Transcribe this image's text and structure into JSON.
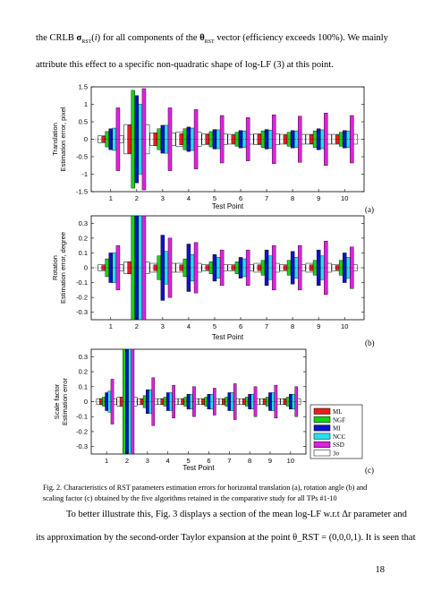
{
  "paragraph_top": {
    "line1": [
      "the CRLB σ_RST(i) for all components of the θ_RST vector (efficiency exceeds 100%). We mainly"
    ],
    "line2": "attribute this effect to a specific non-quadratic shape of log-LF (3) at this point."
  },
  "figure": {
    "panels": [
      {
        "tag": "(a)",
        "ylabel_lines": [
          "Translation",
          "Estimation error, pixel"
        ],
        "xlabel": "Test Point"
      },
      {
        "tag": "(b)",
        "ylabel_lines": [
          "Rotation",
          "Estimation error, degree"
        ],
        "xlabel": "Test Point"
      },
      {
        "tag": "(c)",
        "ylabel_lines": [
          "Scale factor",
          "Estimation error"
        ],
        "xlabel": "Test Point"
      }
    ],
    "legend": [
      "ML",
      "NGF",
      "MI",
      "NCC",
      "SSD",
      "3σ"
    ],
    "colors": {
      "ML": "#ee1c1c",
      "NGF": "#16d316",
      "MI": "#1010cc",
      "NCC": "#22e0f0",
      "SSD": "#e020e0",
      "3σ": "#ffffff"
    }
  },
  "chart_data": [
    {
      "type": "bar",
      "title": "",
      "xlabel": "Test Point",
      "ylabel": "Translation Estimation error, pixel",
      "categories": [
        "1",
        "2",
        "3",
        "4",
        "5",
        "6",
        "7",
        "8",
        "9",
        "10"
      ],
      "yticks": [
        "1.5",
        "1",
        "0.5",
        "0",
        "-0.5",
        "-1",
        "-1.5"
      ],
      "ylim": [
        -1.5,
        1.5
      ],
      "sigma3": [
        0.1,
        0.42,
        0.18,
        0.2,
        0.15,
        0.14,
        0.16,
        0.14,
        0.14,
        0.14
      ],
      "series": [
        {
          "name": "ML",
          "values": [
            0.08,
            0.4,
            0.18,
            0.16,
            0.14,
            0.12,
            0.14,
            0.12,
            0.13,
            0.12
          ]
        },
        {
          "name": "NGF",
          "values": [
            0.22,
            1.4,
            0.3,
            0.3,
            0.22,
            0.2,
            0.24,
            0.2,
            0.24,
            0.2
          ]
        },
        {
          "name": "MI",
          "values": [
            0.3,
            1.25,
            0.4,
            0.35,
            0.28,
            0.25,
            0.28,
            0.25,
            0.3,
            0.25
          ]
        },
        {
          "name": "NCC",
          "values": [
            0.32,
            1.0,
            0.4,
            0.32,
            0.27,
            0.24,
            0.26,
            0.24,
            0.27,
            0.24
          ]
        },
        {
          "name": "SSD",
          "values": [
            0.9,
            1.45,
            0.9,
            0.85,
            0.68,
            0.62,
            0.7,
            0.66,
            0.75,
            0.68
          ]
        }
      ]
    },
    {
      "type": "bar",
      "title": "",
      "xlabel": "Test Point",
      "ylabel": "Rotation Estimation error, degree",
      "categories": [
        "1",
        "2",
        "3",
        "4",
        "5",
        "6",
        "7",
        "8",
        "9",
        "10"
      ],
      "yticks": [
        "0.3",
        "0.2",
        "0.1",
        "0",
        "-0.1",
        "-0.2",
        "-0.3"
      ],
      "ylim": [
        -0.35,
        0.35
      ],
      "sigma3": [
        0.02,
        0.04,
        0.03,
        0.03,
        0.02,
        0.02,
        0.03,
        0.02,
        0.03,
        0.02
      ],
      "series": [
        {
          "name": "ML",
          "values": [
            0.015,
            0.04,
            0.02,
            0.02,
            0.015,
            0.015,
            0.02,
            0.015,
            0.02,
            0.015
          ]
        },
        {
          "name": "NGF",
          "values": [
            0.06,
            0.35,
            0.08,
            0.06,
            0.04,
            0.04,
            0.05,
            0.05,
            0.05,
            0.05
          ]
        },
        {
          "name": "MI",
          "values": [
            0.1,
            0.35,
            0.22,
            0.16,
            0.09,
            0.07,
            0.12,
            0.11,
            0.12,
            0.1
          ]
        },
        {
          "name": "NCC",
          "values": [
            0.1,
            0.35,
            0.11,
            0.09,
            0.07,
            0.06,
            0.08,
            0.07,
            0.08,
            0.07
          ]
        },
        {
          "name": "SSD",
          "values": [
            0.15,
            0.35,
            0.2,
            0.17,
            0.12,
            0.12,
            0.15,
            0.15,
            0.18,
            0.14
          ]
        }
      ]
    },
    {
      "type": "bar",
      "title": "",
      "xlabel": "Test Point",
      "ylabel": "Scale factor Estimation error",
      "categories": [
        "1",
        "2",
        "3",
        "4",
        "5",
        "6",
        "7",
        "8",
        "9",
        "10"
      ],
      "yticks": [
        "0.3",
        "0.2",
        "0.1",
        "0",
        "-0.1",
        "-0.2",
        "-0.3"
      ],
      "ylim": [
        -0.35,
        0.35
      ],
      "sigma3": [
        0.02,
        0.03,
        0.02,
        0.02,
        0.02,
        0.02,
        0.02,
        0.02,
        0.02,
        0.02
      ],
      "series": [
        {
          "name": "ML",
          "values": [
            0.02,
            0.03,
            0.02,
            0.02,
            0.02,
            0.02,
            0.02,
            0.02,
            0.02,
            0.02
          ]
        },
        {
          "name": "NGF",
          "values": [
            0.03,
            0.35,
            0.04,
            0.03,
            0.03,
            0.03,
            0.03,
            0.03,
            0.03,
            0.03
          ]
        },
        {
          "name": "MI",
          "values": [
            0.06,
            0.35,
            0.08,
            0.06,
            0.05,
            0.05,
            0.06,
            0.05,
            0.06,
            0.05
          ]
        },
        {
          "name": "NCC",
          "values": [
            0.07,
            0.35,
            0.08,
            0.06,
            0.05,
            0.05,
            0.06,
            0.05,
            0.06,
            0.05
          ]
        },
        {
          "name": "SSD",
          "values": [
            0.15,
            0.35,
            0.16,
            0.11,
            0.1,
            0.09,
            0.12,
            0.1,
            0.11,
            0.1
          ]
        }
      ]
    }
  ],
  "caption": {
    "line1": "Fig. 2. Characteristics of RST parameters estimation errors for horizontal translation (a), rotation angle (b) and",
    "line2": "scaling factor (c) obtained by the five algorithms retained in the comparative study for all TPs #1-10"
  },
  "paragraph_bottom": {
    "line1": "To better illustrate this, Fig. 3 displays a section of the mean log-LF w.r.t Δr parameter and",
    "line2": "its approximation by the second-order Taylor expansion at the point θ_RST = (0,0,0,1). It is seen that"
  },
  "page_number": "18"
}
